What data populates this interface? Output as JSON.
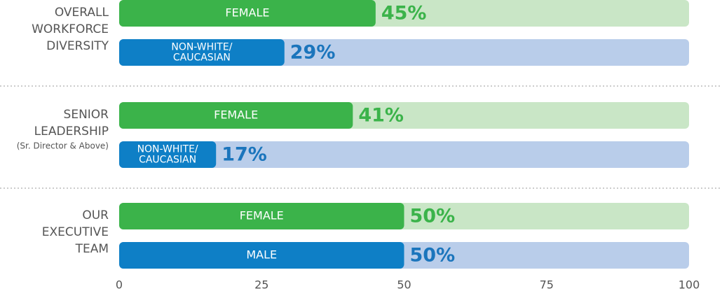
{
  "chart_data": {
    "type": "hbar-groups",
    "xlim": [
      0,
      100
    ],
    "xticks": [
      0,
      25,
      50,
      75,
      100
    ],
    "groups": [
      {
        "label": [
          "OVERALL",
          "WORKFORCE",
          "DIVERSITY"
        ],
        "bars": [
          {
            "name": [
              "FEMALE"
            ],
            "value": 45,
            "value_label": "45%",
            "color": "#3bb34a",
            "track_color": "#c9e6c6",
            "label_color": "#3bb34a"
          },
          {
            "name": [
              "NON-WHITE/",
              "CAUCASIAN"
            ],
            "value": 29,
            "value_label": "29%",
            "color": "#0e7fc6",
            "track_color": "#b9cdea",
            "label_color": "#1b75bc"
          }
        ]
      },
      {
        "label": [
          "SENIOR",
          "LEADERSHIP"
        ],
        "note": "(Sr. Director & Above)",
        "bars": [
          {
            "name": [
              "FEMALE"
            ],
            "value": 41,
            "value_label": "41%",
            "color": "#3bb34a",
            "track_color": "#c9e6c6",
            "label_color": "#3bb34a"
          },
          {
            "name": [
              "NON-WHITE/",
              "CAUCASIAN"
            ],
            "value": 17,
            "value_label": "17%",
            "color": "#0e7fc6",
            "track_color": "#b9cdea",
            "label_color": "#1b75bc"
          }
        ]
      },
      {
        "label": [
          "OUR",
          "EXECUTIVE",
          "TEAM"
        ],
        "bars": [
          {
            "name": [
              "FEMALE"
            ],
            "value": 50,
            "value_label": "50%",
            "color": "#3bb34a",
            "track_color": "#c9e6c6",
            "label_color": "#3bb34a"
          },
          {
            "name": [
              "MALE"
            ],
            "value": 50,
            "value_label": "50%",
            "color": "#0e7fc6",
            "track_color": "#b9cdea",
            "label_color": "#1b75bc"
          }
        ]
      }
    ]
  }
}
